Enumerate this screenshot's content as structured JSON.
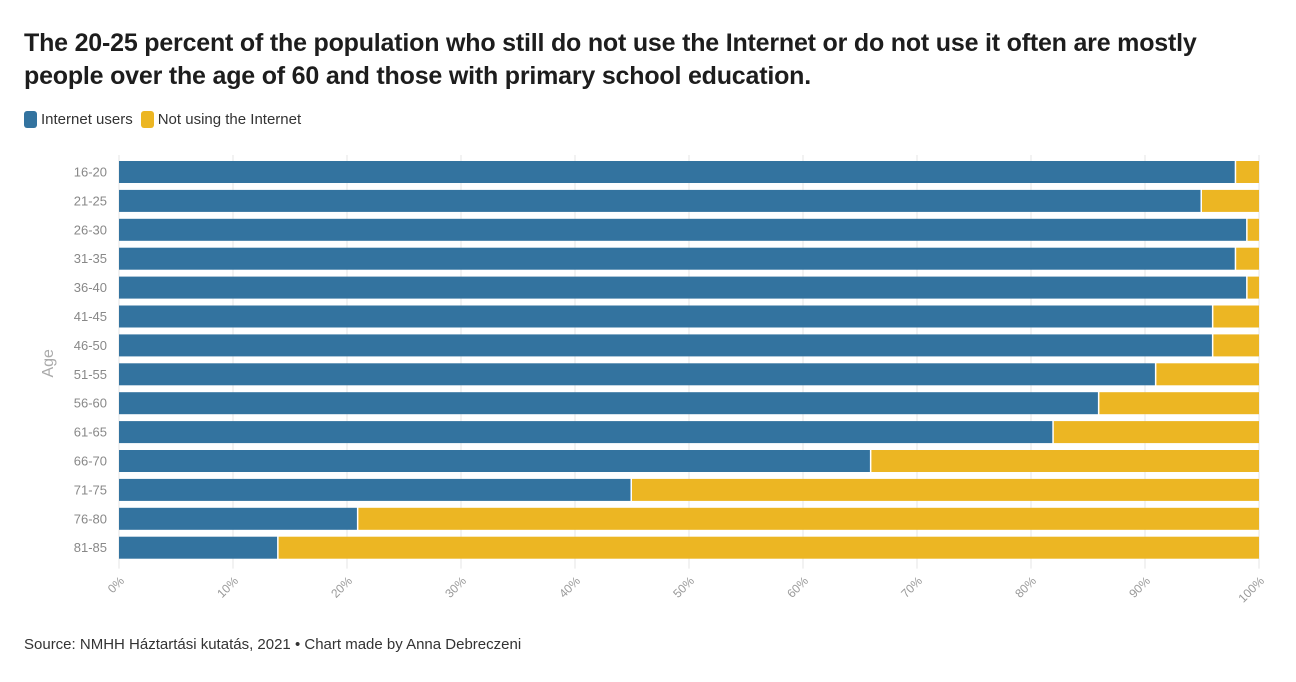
{
  "chart_data": {
    "type": "bar",
    "orientation": "horizontal",
    "stacked": true,
    "title": "The 20-25 percent of the population who still do not use the Internet or do not use it often are mostly people over the age of 60 and those with primary school education.",
    "ylabel": "Age",
    "xlabel": "",
    "xlim": [
      0,
      100
    ],
    "xticks": [
      "0%",
      "10%",
      "20%",
      "30%",
      "40%",
      "50%",
      "60%",
      "70%",
      "80%",
      "90%",
      "100%"
    ],
    "categories": [
      "16-20",
      "21-25",
      "26-30",
      "31-35",
      "36-40",
      "41-45",
      "46-50",
      "51-55",
      "56-60",
      "61-65",
      "66-70",
      "71-75",
      "76-80",
      "81-85"
    ],
    "series": [
      {
        "name": "Internet users",
        "color": "#33739f",
        "values": [
          98,
          95,
          99,
          98,
          99,
          96,
          96,
          91,
          86,
          82,
          66,
          45,
          21,
          14
        ]
      },
      {
        "name": "Not using the Internet",
        "color": "#ecb623",
        "values": [
          2,
          5,
          1,
          2,
          1,
          4,
          4,
          9,
          14,
          18,
          34,
          55,
          79,
          86
        ]
      }
    ],
    "legend": "top-left",
    "grid": true
  },
  "footer": {
    "source": "Source: NMHH Háztartási kutatás, 2021 • Chart made by Anna Debreczeni"
  }
}
